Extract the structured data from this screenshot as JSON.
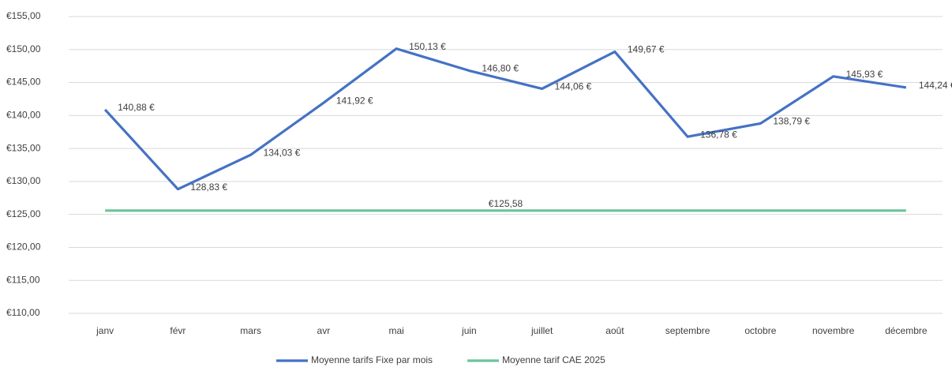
{
  "chart_data": {
    "type": "line",
    "categories": [
      "janv",
      "févr",
      "mars",
      "avr",
      "mai",
      "juin",
      "juillet",
      "août",
      "septembre",
      "octobre",
      "novembre",
      "décembre"
    ],
    "series": [
      {
        "name": "Moyenne tarifs Fixe par mois",
        "color": "#4472c4",
        "values": [
          140.88,
          128.83,
          134.03,
          141.92,
          150.13,
          146.8,
          144.06,
          149.67,
          136.78,
          138.79,
          145.93,
          144.24
        ],
        "value_labels": [
          "140,88 €",
          "128,83 €",
          "134,03 €",
          "141,92 €",
          "150,13 €",
          "146,80 €",
          "144,06 €",
          "149,67 €",
          "136,78 €",
          "138,79 €",
          "145,93 €",
          "144,24 €"
        ]
      },
      {
        "name": "Moyenne tarif CAE 2025",
        "color": "#6cc49a",
        "values": [
          125.58,
          125.58,
          125.58,
          125.58,
          125.58,
          125.58,
          125.58,
          125.58,
          125.58,
          125.58,
          125.58,
          125.58
        ],
        "value_labels": [
          null,
          null,
          null,
          null,
          null,
          null,
          "€125,58",
          null,
          null,
          null,
          null,
          null
        ]
      }
    ],
    "ylim": [
      110,
      155
    ],
    "yticks": [
      {
        "value": 110,
        "label": "€110,00"
      },
      {
        "value": 115,
        "label": "€115,00"
      },
      {
        "value": 120,
        "label": "€120,00"
      },
      {
        "value": 125,
        "label": "€125,00"
      },
      {
        "value": 130,
        "label": "€130,00"
      },
      {
        "value": 135,
        "label": "€135,00"
      },
      {
        "value": 140,
        "label": "€140,00"
      },
      {
        "value": 145,
        "label": "€145,00"
      },
      {
        "value": 150,
        "label": "€150,00"
      },
      {
        "value": 155,
        "label": "€155,00"
      }
    ],
    "grid": true,
    "legend": "bottom"
  }
}
